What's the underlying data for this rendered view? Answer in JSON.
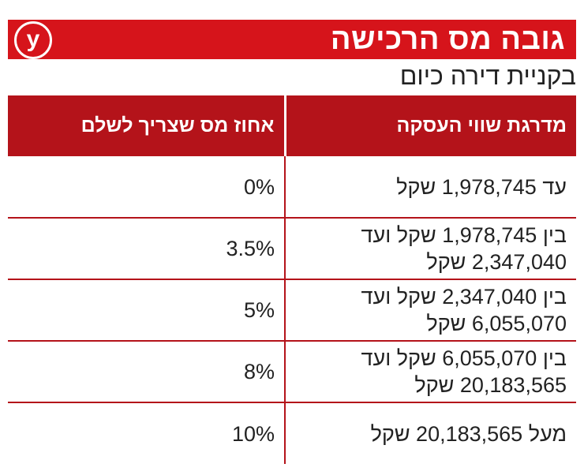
{
  "header": {
    "title": "גובה מס הרכישה",
    "logo_letter": "y",
    "subtitle": "בקניית דירה כיום"
  },
  "table": {
    "columns": [
      "מדרגת שווי העסקה",
      "אחוז מס שצריך לשלם"
    ],
    "rows": [
      {
        "range": "עד 1,978,745 שקל",
        "rate": "0%"
      },
      {
        "range": "בין 1,978,745 שקל ועד 2,347,040 שקל",
        "rate": "3.5%"
      },
      {
        "range": "בין 2,347,040 שקל ועד 6,055,070 שקל",
        "rate": "5%"
      },
      {
        "range": "בין 6,055,070 שקל ועד 20,183,565 שקל",
        "rate": "8%"
      },
      {
        "range": "מעל 20,183,565 שקל",
        "rate": "10%"
      }
    ]
  },
  "colors": {
    "title_bg": "#d6141b",
    "header_bg": "#b4131a",
    "text": "#222222"
  }
}
